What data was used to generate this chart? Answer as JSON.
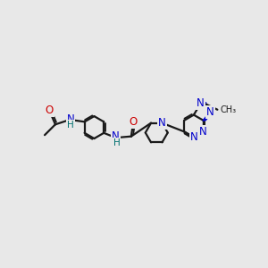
{
  "bg_color": "#e8e8e8",
  "bond_color": "#1a1a1a",
  "N_color": "#0000cc",
  "O_color": "#cc0000",
  "H_color": "#007070",
  "lw": 1.6,
  "fs": 8.5,
  "xlim": [
    -0.5,
    9.5
  ],
  "ylim": [
    2.5,
    6.5
  ]
}
